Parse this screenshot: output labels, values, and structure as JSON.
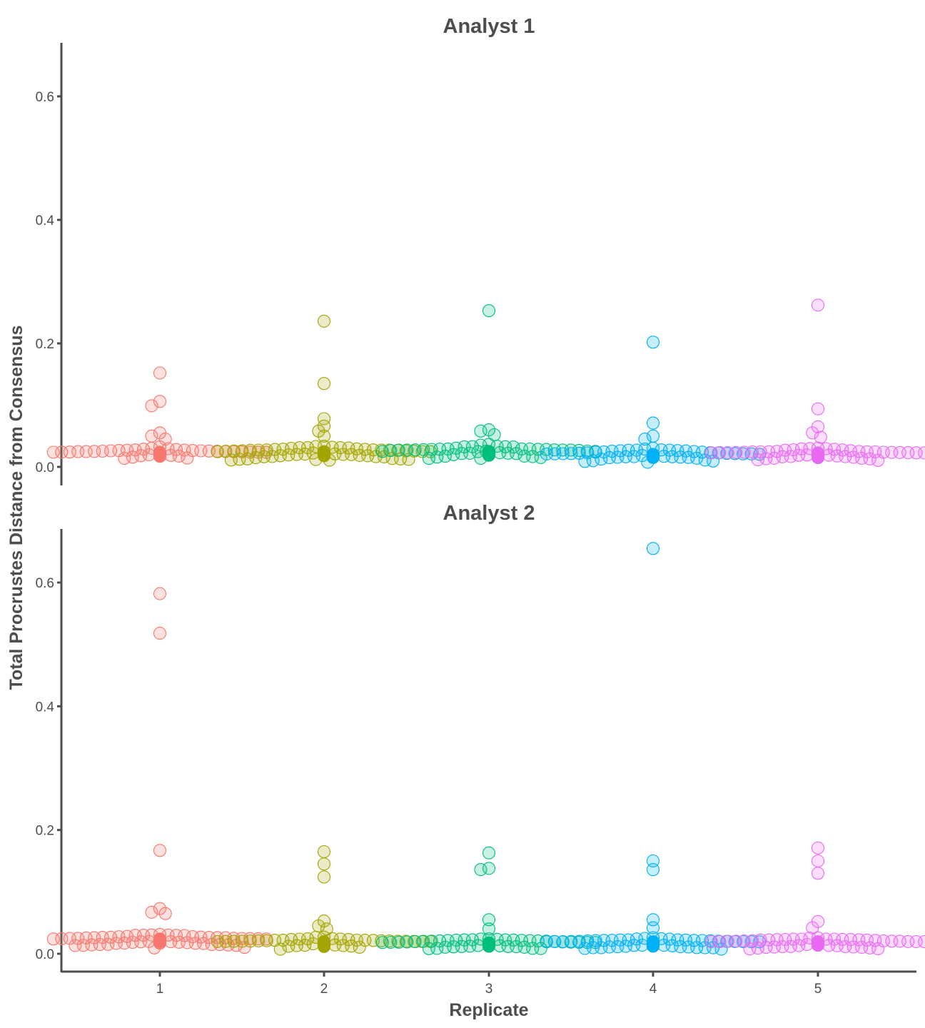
{
  "chart_data": {
    "type": "scatter",
    "subtype": "beeswarm",
    "xlabel": "Replicate",
    "ylabel": "Total Procrustes Distance from Consensus",
    "categories": [
      "1",
      "2",
      "3",
      "4",
      "5"
    ],
    "ylim": [
      -0.03,
      0.69
    ],
    "yticks": [
      0.0,
      0.2,
      0.4,
      0.6
    ],
    "ytick_labels": [
      "0.0",
      "0.2",
      "0.4",
      "0.6"
    ],
    "grid": false,
    "legend": "none",
    "colors": [
      "#F8766D",
      "#A3A500",
      "#00BF7D",
      "#00B0F6",
      "#E76BF3"
    ],
    "panels": [
      {
        "title": "Analyst 1",
        "series": [
          {
            "name": "1",
            "outliers": [
              0.152,
              0.106,
              0.099,
              0.055,
              0.05,
              0.045
            ],
            "bulk": {
              "min": 0.003,
              "max": 0.042,
              "center": 0.022,
              "n": 70
            }
          },
          {
            "name": "2",
            "outliers": [
              0.236,
              0.135,
              0.078,
              0.066,
              0.058,
              0.05
            ],
            "bulk": {
              "min": 0.002,
              "max": 0.045,
              "center": 0.02,
              "n": 70
            }
          },
          {
            "name": "3",
            "outliers": [
              0.253,
              0.06,
              0.058,
              0.052
            ],
            "bulk": {
              "min": 0.003,
              "max": 0.045,
              "center": 0.022,
              "n": 70
            }
          },
          {
            "name": "4",
            "outliers": [
              0.202,
              0.071,
              0.05,
              0.045
            ],
            "bulk": {
              "min": 0.002,
              "max": 0.04,
              "center": 0.018,
              "n": 70
            }
          },
          {
            "name": "5",
            "outliers": [
              0.262,
              0.094,
              0.065,
              0.055,
              0.048
            ],
            "bulk": {
              "min": 0.003,
              "max": 0.04,
              "center": 0.018,
              "n": 70
            }
          }
        ]
      },
      {
        "title": "Analyst 2",
        "series": [
          {
            "name": "1",
            "outliers": [
              0.582,
              0.518,
              0.167,
              0.073,
              0.067,
              0.065
            ],
            "bulk": {
              "min": 0.002,
              "max": 0.045,
              "center": 0.02,
              "n": 70
            }
          },
          {
            "name": "2",
            "outliers": [
              0.165,
              0.145,
              0.124,
              0.053,
              0.045,
              0.04
            ],
            "bulk": {
              "min": 0.002,
              "max": 0.035,
              "center": 0.015,
              "n": 75
            }
          },
          {
            "name": "3",
            "outliers": [
              0.163,
              0.138,
              0.136,
              0.055,
              0.04
            ],
            "bulk": {
              "min": 0.001,
              "max": 0.035,
              "center": 0.014,
              "n": 75
            }
          },
          {
            "name": "4",
            "outliers": [
              0.655,
              0.15,
              0.136,
              0.055,
              0.042
            ],
            "bulk": {
              "min": 0.001,
              "max": 0.035,
              "center": 0.015,
              "n": 75
            }
          },
          {
            "name": "5",
            "outliers": [
              0.171,
              0.15,
              0.13,
              0.052,
              0.042
            ],
            "bulk": {
              "min": 0.002,
              "max": 0.035,
              "center": 0.015,
              "n": 75
            }
          }
        ]
      }
    ]
  }
}
